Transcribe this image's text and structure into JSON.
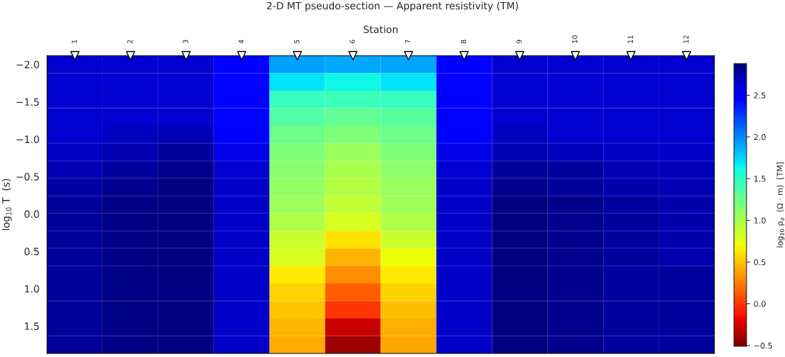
{
  "chart_data": {
    "type": "heatmap",
    "title": "2-D MT pseudo-section — Apparent resistivity (TM)",
    "xlabel": "Station",
    "ylabel": "log$_{10}$ T  (s)",
    "clabel": "log$_{10}$ ρ$_{a}$  (Ω · m)  [TM]",
    "categories": [
      "1",
      "2",
      "3",
      "4",
      "5",
      "6",
      "7",
      "8",
      "9",
      "10",
      "11",
      "12"
    ],
    "ylim": [
      1.867,
      -2.117
    ],
    "yticks": [
      {
        "value": -2.0,
        "label": "−2.0"
      },
      {
        "value": -1.5,
        "label": "−1.5"
      },
      {
        "value": -1.0,
        "label": "−1.0"
      },
      {
        "value": -0.5,
        "label": "−0.5"
      },
      {
        "value": 0,
        "label": "0.0"
      },
      {
        "value": 0.5,
        "label": "0.5"
      },
      {
        "value": 1.0,
        "label": "1.0"
      },
      {
        "value": 1.5,
        "label": "1.5"
      }
    ],
    "clim": [
      -0.51,
      2.88
    ],
    "cticks": [
      {
        "value": -0.5,
        "label": "−0.5"
      },
      {
        "value": 0,
        "label": "0.0"
      },
      {
        "value": 0.5,
        "label": "0.5"
      },
      {
        "value": 1.0,
        "label": "1.0"
      },
      {
        "value": 1.5,
        "label": "1.5"
      },
      {
        "value": 2.0,
        "label": "2.0"
      },
      {
        "value": 2.5,
        "label": "2.5"
      }
    ],
    "cells": [
      [
        2.63,
        2.63,
        2.63,
        2.5,
        1.92,
        1.9,
        1.91,
        2.5,
        2.63,
        2.63,
        2.63,
        2.63
      ],
      [
        2.63,
        2.63,
        2.63,
        2.5,
        1.69,
        1.63,
        1.69,
        2.5,
        2.63,
        2.63,
        2.63,
        2.63
      ],
      [
        2.63,
        2.64,
        2.63,
        2.5,
        1.47,
        1.44,
        1.47,
        2.5,
        2.63,
        2.63,
        2.63,
        2.63
      ],
      [
        2.63,
        2.64,
        2.63,
        2.5,
        1.35,
        1.29,
        1.34,
        2.5,
        2.63,
        2.63,
        2.63,
        2.63
      ],
      [
        2.63,
        2.69,
        2.72,
        2.5,
        1.24,
        1.18,
        1.24,
        2.5,
        2.69,
        2.63,
        2.63,
        2.63
      ],
      [
        2.67,
        2.73,
        2.78,
        2.57,
        1.18,
        1.06,
        1.18,
        2.57,
        2.72,
        2.7,
        2.67,
        2.66
      ],
      [
        2.72,
        2.78,
        2.84,
        2.63,
        1.13,
        0.99,
        1.11,
        2.63,
        2.8,
        2.78,
        2.72,
        2.7
      ],
      [
        2.77,
        2.84,
        2.87,
        2.66,
        1.08,
        0.95,
        1.06,
        2.66,
        2.84,
        2.8,
        2.74,
        2.72
      ],
      [
        2.8,
        2.86,
        2.88,
        2.66,
        1.04,
        0.9,
        1.03,
        2.66,
        2.87,
        2.84,
        2.78,
        2.74
      ],
      [
        2.8,
        2.86,
        2.88,
        2.66,
        0.96,
        0.81,
        0.96,
        2.66,
        2.87,
        2.84,
        2.78,
        2.74
      ],
      [
        2.8,
        2.86,
        2.88,
        2.66,
        0.86,
        0.61,
        0.86,
        2.66,
        2.87,
        2.84,
        2.78,
        2.74
      ],
      [
        2.8,
        2.86,
        2.88,
        2.66,
        0.81,
        0.45,
        0.71,
        2.66,
        2.87,
        2.84,
        2.78,
        2.74
      ],
      [
        2.8,
        2.86,
        2.88,
        2.66,
        0.64,
        0.3,
        0.63,
        2.66,
        2.87,
        2.84,
        2.78,
        2.78
      ],
      [
        2.8,
        2.86,
        2.88,
        2.66,
        0.56,
        0.13,
        0.55,
        2.66,
        2.87,
        2.84,
        2.78,
        2.78
      ],
      [
        2.8,
        2.86,
        2.88,
        2.66,
        0.5,
        -0.02,
        0.48,
        2.66,
        2.87,
        2.84,
        2.78,
        2.78
      ],
      [
        2.8,
        2.86,
        2.88,
        2.66,
        0.45,
        -0.29,
        0.43,
        2.66,
        2.87,
        2.84,
        2.78,
        2.78
      ],
      [
        2.8,
        2.86,
        2.88,
        2.66,
        0.41,
        -0.41,
        0.4,
        2.66,
        2.87,
        2.84,
        2.78,
        2.78
      ]
    ]
  }
}
